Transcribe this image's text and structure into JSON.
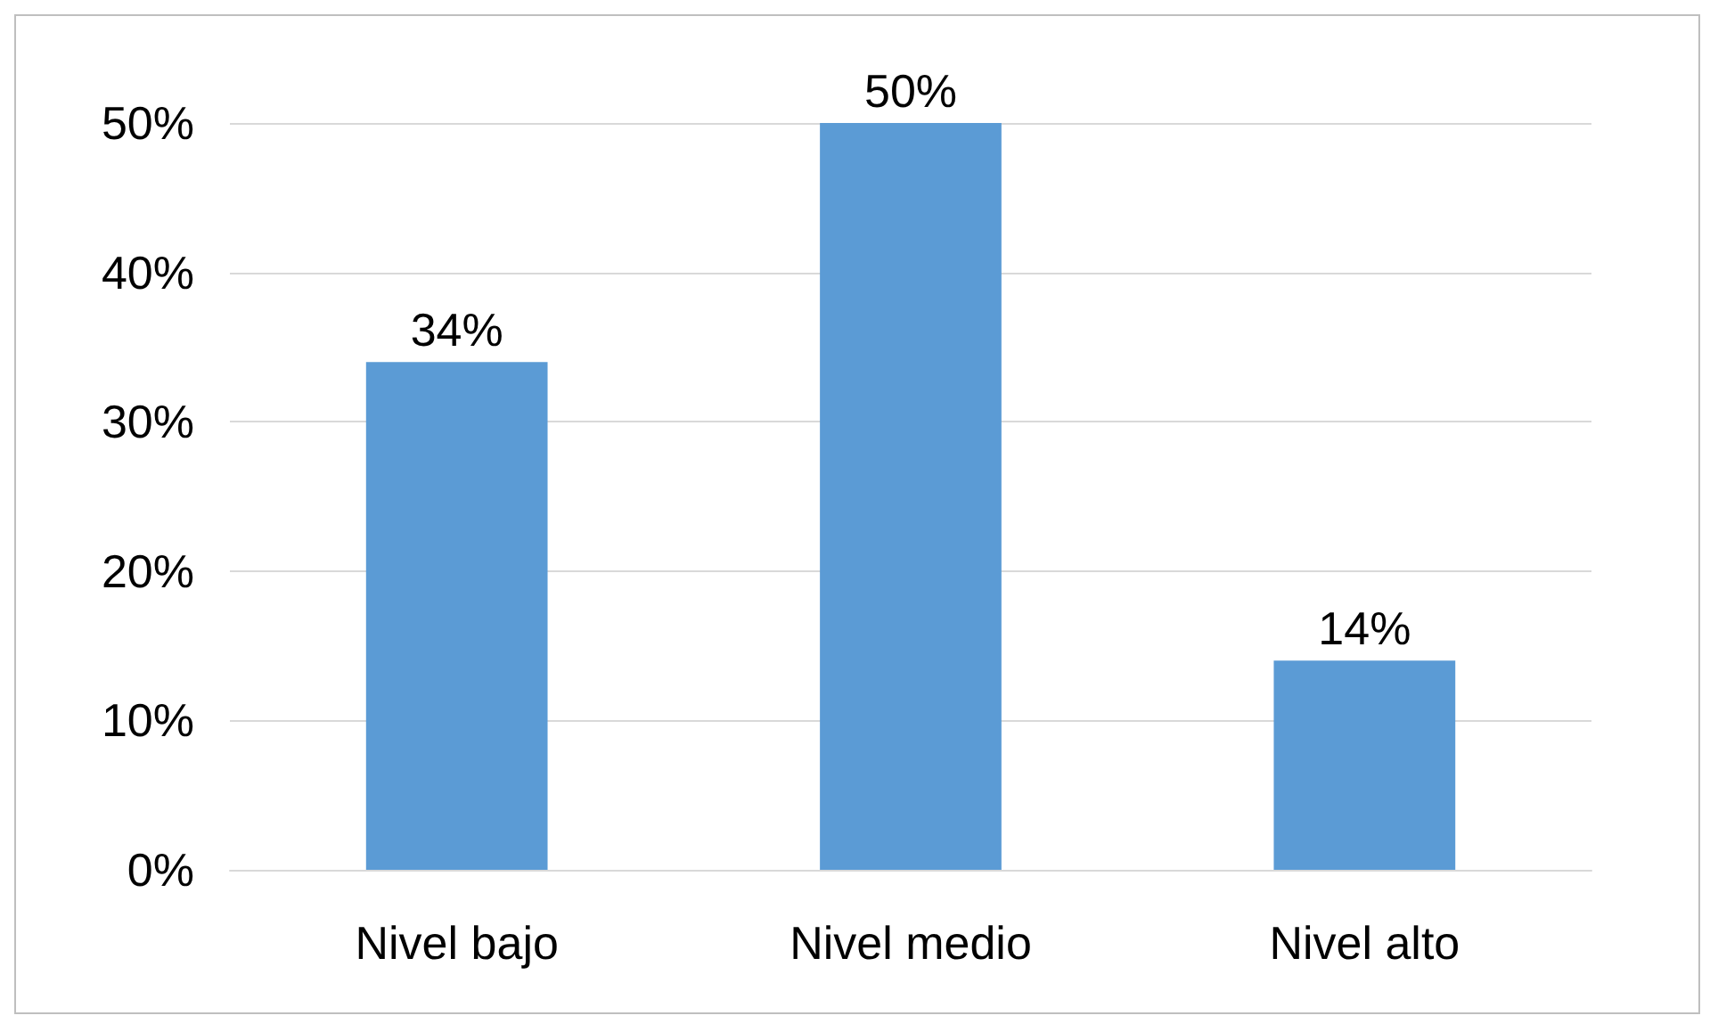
{
  "chart_data": {
    "type": "bar",
    "categories": [
      "Nivel bajo",
      "Nivel medio",
      "Nivel alto"
    ],
    "values": [
      34,
      50,
      14
    ],
    "value_labels": [
      "34%",
      "50%",
      "14%"
    ],
    "color": "#5b9bd5",
    "ylim": [
      0,
      50
    ],
    "yticks": [
      {
        "value": 0,
        "label": "0%"
      },
      {
        "value": 10,
        "label": "10%"
      },
      {
        "value": 20,
        "label": "20%"
      },
      {
        "value": 30,
        "label": "30%"
      },
      {
        "value": 40,
        "label": "40%"
      },
      {
        "value": 50,
        "label": "50%"
      }
    ],
    "grid": true
  }
}
